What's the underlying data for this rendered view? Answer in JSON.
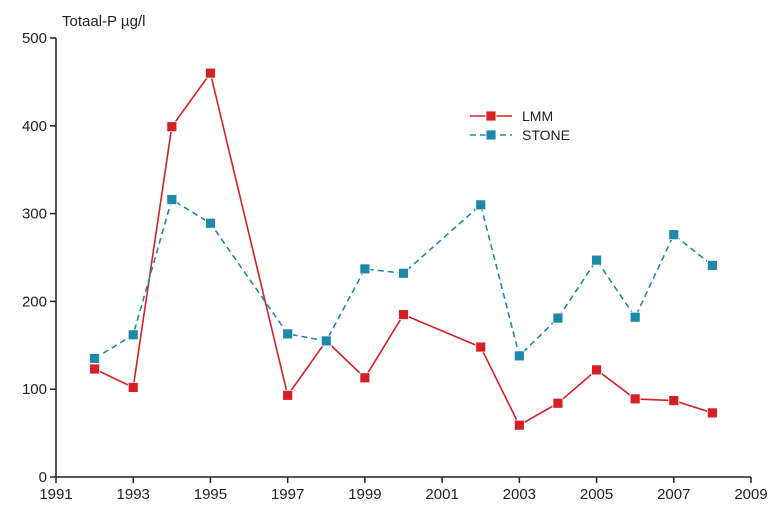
{
  "chart_data": {
    "type": "line",
    "title": "",
    "ylabel": "Totaal-P µg/l",
    "xlabel": "",
    "xlim": [
      1991,
      2009
    ],
    "ylim": [
      0,
      500
    ],
    "xticks": [
      1991,
      1993,
      1995,
      1997,
      1999,
      2001,
      2003,
      2005,
      2007,
      2009
    ],
    "yticks": [
      0,
      100,
      200,
      300,
      400,
      500
    ],
    "grid": false,
    "legend_position": "top-right",
    "series": [
      {
        "name": "LMM",
        "color": "#d42027",
        "line_style": "solid",
        "marker": "square",
        "points": [
          [
            1992,
            123
          ],
          [
            1993,
            102
          ],
          [
            1994,
            399
          ],
          [
            1995,
            460
          ],
          [
            1997,
            93
          ],
          [
            1998,
            155
          ],
          [
            1999,
            113
          ],
          [
            2000,
            185
          ],
          [
            2002,
            148
          ],
          [
            2003,
            59
          ],
          [
            2004,
            84
          ],
          [
            2005,
            122
          ],
          [
            2006,
            89
          ],
          [
            2007,
            87
          ],
          [
            2008,
            73
          ]
        ]
      },
      {
        "name": "STONE",
        "color": "#1e8aa8",
        "line_style": "dashed",
        "marker": "square",
        "points": [
          [
            1992,
            135
          ],
          [
            1993,
            162
          ],
          [
            1994,
            316
          ],
          [
            1995,
            289
          ],
          [
            1997,
            163
          ],
          [
            1998,
            155
          ],
          [
            1999,
            237
          ],
          [
            2000,
            232
          ],
          [
            2002,
            310
          ],
          [
            2003,
            138
          ],
          [
            2004,
            181
          ],
          [
            2005,
            247
          ],
          [
            2006,
            182
          ],
          [
            2007,
            276
          ],
          [
            2008,
            241
          ]
        ]
      }
    ]
  }
}
